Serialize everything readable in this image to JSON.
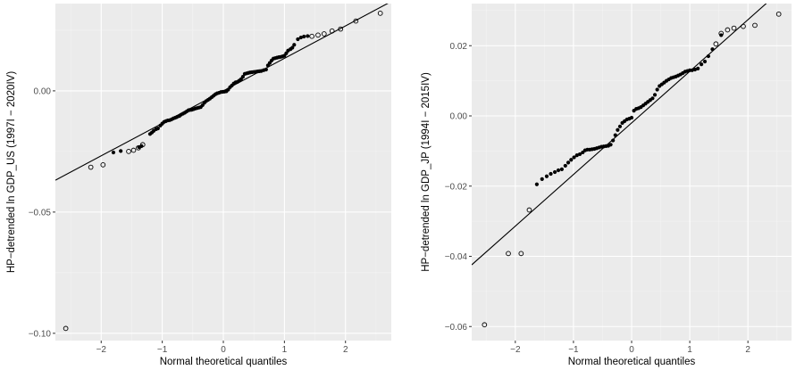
{
  "colors": {
    "panel": "#ebebeb",
    "grid_major": "#ffffff",
    "grid_minor": "#f4f4f4",
    "filled_point": "#000000",
    "open_point": "#000000",
    "reference_line": "#000000",
    "tick_label": "#4d4d4d"
  },
  "chart_data": [
    {
      "type": "scatter",
      "subtype": "qq-plot",
      "xlabel": "Normal theoretical quantiles",
      "ylabel": "HP−detrended ln GDP_US (1997I − 2020IV)",
      "xlim": [
        -2.75,
        2.75
      ],
      "ylim": [
        -0.103,
        0.036
      ],
      "x_ticks": [
        -2,
        -1,
        0,
        1,
        2
      ],
      "x_tick_labels": [
        "−2",
        "−1",
        "0",
        "1",
        "2"
      ],
      "y_ticks": [
        -0.1,
        -0.05,
        0.0
      ],
      "y_tick_labels": [
        "−0.10",
        "−0.05",
        "0.00"
      ],
      "reference_line": {
        "intercept": 0.0,
        "slope": 0.0134
      },
      "series": [
        {
          "marker": "open-circle",
          "points": [
            [
              -2.58,
              -0.098
            ],
            [
              -2.17,
              -0.0315
            ],
            [
              -1.97,
              -0.0305
            ],
            [
              -1.55,
              -0.025
            ],
            [
              -1.47,
              -0.0245
            ],
            [
              -1.39,
              -0.0235
            ],
            [
              -1.32,
              -0.0222
            ],
            [
              1.45,
              0.0225
            ],
            [
              1.55,
              0.023
            ],
            [
              1.65,
              0.0235
            ],
            [
              1.78,
              0.0247
            ],
            [
              1.92,
              0.0255
            ],
            [
              2.17,
              0.0288
            ],
            [
              2.57,
              0.032
            ]
          ]
        },
        {
          "marker": "filled-circle",
          "points": [
            [
              -1.8,
              -0.0254
            ],
            [
              -1.68,
              -0.0248
            ],
            [
              -1.38,
              -0.0232
            ],
            [
              -1.34,
              -0.0228
            ],
            [
              -1.2,
              -0.0178
            ],
            [
              -1.17,
              -0.0172
            ],
            [
              -1.14,
              -0.0165
            ],
            [
              -1.1,
              -0.0158
            ],
            [
              -1.07,
              -0.0155
            ],
            [
              -1.03,
              -0.0143
            ],
            [
              -1.0,
              -0.0135
            ],
            [
              -0.97,
              -0.0128
            ],
            [
              -0.94,
              -0.0125
            ],
            [
              -0.91,
              -0.0122
            ],
            [
              -0.88,
              -0.0121
            ],
            [
              -0.85,
              -0.0118
            ],
            [
              -0.82,
              -0.0114
            ],
            [
              -0.79,
              -0.0111
            ],
            [
              -0.76,
              -0.0108
            ],
            [
              -0.72,
              -0.0104
            ],
            [
              -0.69,
              -0.0098
            ],
            [
              -0.66,
              -0.0094
            ],
            [
              -0.63,
              -0.009
            ],
            [
              -0.6,
              -0.0085
            ],
            [
              -0.57,
              -0.008
            ],
            [
              -0.55,
              -0.0079
            ],
            [
              -0.52,
              -0.0078
            ],
            [
              -0.49,
              -0.0076
            ],
            [
              -0.46,
              -0.0073
            ],
            [
              -0.43,
              -0.0071
            ],
            [
              -0.4,
              -0.0069
            ],
            [
              -0.37,
              -0.0067
            ],
            [
              -0.34,
              -0.0059
            ],
            [
              -0.31,
              -0.0049
            ],
            [
              -0.28,
              -0.0042
            ],
            [
              -0.25,
              -0.0037
            ],
            [
              -0.22,
              -0.0032
            ],
            [
              -0.19,
              -0.0026
            ],
            [
              -0.16,
              -0.002
            ],
            [
              -0.13,
              -0.0014
            ],
            [
              -0.1,
              -0.001
            ],
            [
              -0.07,
              -0.0008
            ],
            [
              -0.04,
              -0.0005
            ],
            [
              -0.01,
              -0.0004
            ],
            [
              0.02,
              -0.0003
            ],
            [
              0.05,
              -0.0002
            ],
            [
              0.08,
              0.0005
            ],
            [
              0.11,
              0.0015
            ],
            [
              0.14,
              0.0022
            ],
            [
              0.17,
              0.003
            ],
            [
              0.2,
              0.0035
            ],
            [
              0.23,
              0.0037
            ],
            [
              0.26,
              0.0042
            ],
            [
              0.29,
              0.0048
            ],
            [
              0.32,
              0.0058
            ],
            [
              0.35,
              0.007
            ],
            [
              0.38,
              0.0072
            ],
            [
              0.41,
              0.0074
            ],
            [
              0.44,
              0.0076
            ],
            [
              0.47,
              0.0077
            ],
            [
              0.5,
              0.0078
            ],
            [
              0.53,
              0.0079
            ],
            [
              0.56,
              0.008
            ],
            [
              0.59,
              0.0081
            ],
            [
              0.62,
              0.0082
            ],
            [
              0.66,
              0.0085
            ],
            [
              0.7,
              0.0088
            ],
            [
              0.73,
              0.0105
            ],
            [
              0.76,
              0.0115
            ],
            [
              0.79,
              0.0125
            ],
            [
              0.82,
              0.0133
            ],
            [
              0.85,
              0.0135
            ],
            [
              0.88,
              0.0137
            ],
            [
              0.91,
              0.0139
            ],
            [
              0.94,
              0.014
            ],
            [
              0.97,
              0.0142
            ],
            [
              1.0,
              0.0145
            ],
            [
              1.03,
              0.0155
            ],
            [
              1.06,
              0.0166
            ],
            [
              1.1,
              0.0172
            ],
            [
              1.13,
              0.0178
            ],
            [
              1.16,
              0.019
            ],
            [
              1.22,
              0.0213
            ],
            [
              1.27,
              0.022
            ],
            [
              1.32,
              0.0224
            ],
            [
              1.38,
              0.0226
            ]
          ]
        }
      ]
    },
    {
      "type": "scatter",
      "subtype": "qq-plot",
      "xlabel": "Normal theoretical quantiles",
      "ylabel": "HP−detrended ln GDP_JP (1994I − 2015IV)",
      "xlim": [
        -2.75,
        2.75
      ],
      "ylim": [
        -0.064,
        0.032
      ],
      "x_ticks": [
        -2,
        -1,
        0,
        1,
        2
      ],
      "x_tick_labels": [
        "−2",
        "−1",
        "0",
        "1",
        "2"
      ],
      "y_ticks": [
        -0.06,
        -0.04,
        -0.02,
        0.0,
        0.02
      ],
      "y_tick_labels": [
        "−0.06",
        "−0.04",
        "−0.02",
        "0.00",
        "0.02"
      ],
      "reference_line": {
        "intercept": -0.002,
        "slope": 0.0147
      },
      "series": [
        {
          "marker": "open-circle",
          "points": [
            [
              -2.53,
              -0.0595
            ],
            [
              -2.12,
              -0.0392
            ],
            [
              -1.9,
              -0.0392
            ],
            [
              -1.76,
              -0.0268
            ],
            [
              1.45,
              0.0205
            ],
            [
              1.54,
              0.0235
            ],
            [
              1.65,
              0.0245
            ],
            [
              1.76,
              0.025
            ],
            [
              1.92,
              0.0255
            ],
            [
              2.12,
              0.0258
            ],
            [
              2.53,
              0.029
            ]
          ]
        },
        {
          "marker": "filled-circle",
          "points": [
            [
              -1.63,
              -0.0195
            ],
            [
              -1.54,
              -0.018
            ],
            [
              -1.46,
              -0.0172
            ],
            [
              -1.39,
              -0.0165
            ],
            [
              -1.32,
              -0.016
            ],
            [
              -1.26,
              -0.0155
            ],
            [
              -1.2,
              -0.0152
            ],
            [
              -1.14,
              -0.0142
            ],
            [
              -1.09,
              -0.0133
            ],
            [
              -1.04,
              -0.0125
            ],
            [
              -0.99,
              -0.0118
            ],
            [
              -0.94,
              -0.0112
            ],
            [
              -0.89,
              -0.0109
            ],
            [
              -0.84,
              -0.0104
            ],
            [
              -0.8,
              -0.0098
            ],
            [
              -0.76,
              -0.0096
            ],
            [
              -0.72,
              -0.0096
            ],
            [
              -0.68,
              -0.0095
            ],
            [
              -0.64,
              -0.0094
            ],
            [
              -0.6,
              -0.0092
            ],
            [
              -0.56,
              -0.009
            ],
            [
              -0.52,
              -0.0088
            ],
            [
              -0.48,
              -0.0087
            ],
            [
              -0.44,
              -0.0086
            ],
            [
              -0.4,
              -0.0085
            ],
            [
              -0.36,
              -0.0082
            ],
            [
              -0.32,
              -0.007
            ],
            [
              -0.28,
              -0.0055
            ],
            [
              -0.24,
              -0.004
            ],
            [
              -0.2,
              -0.003
            ],
            [
              -0.16,
              -0.002
            ],
            [
              -0.12,
              -0.0015
            ],
            [
              -0.08,
              -0.001
            ],
            [
              -0.04,
              -0.0008
            ],
            [
              0.0,
              -0.0005
            ],
            [
              0.04,
              0.0015
            ],
            [
              0.08,
              0.002
            ],
            [
              0.12,
              0.0022
            ],
            [
              0.16,
              0.0025
            ],
            [
              0.2,
              0.003
            ],
            [
              0.24,
              0.0035
            ],
            [
              0.28,
              0.004
            ],
            [
              0.32,
              0.0045
            ],
            [
              0.36,
              0.005
            ],
            [
              0.4,
              0.006
            ],
            [
              0.44,
              0.0075
            ],
            [
              0.48,
              0.0085
            ],
            [
              0.52,
              0.009
            ],
            [
              0.56,
              0.0095
            ],
            [
              0.6,
              0.01
            ],
            [
              0.64,
              0.0104
            ],
            [
              0.68,
              0.0108
            ],
            [
              0.72,
              0.011
            ],
            [
              0.76,
              0.0112
            ],
            [
              0.8,
              0.0115
            ],
            [
              0.84,
              0.0118
            ],
            [
              0.88,
              0.0122
            ],
            [
              0.92,
              0.0126
            ],
            [
              0.96,
              0.0128
            ],
            [
              1.0,
              0.013
            ],
            [
              1.04,
              0.013
            ],
            [
              1.09,
              0.0132
            ],
            [
              1.14,
              0.0135
            ],
            [
              1.2,
              0.0147
            ],
            [
              1.26,
              0.0155
            ],
            [
              1.32,
              0.017
            ],
            [
              1.39,
              0.019
            ],
            [
              1.54,
              0.023
            ]
          ]
        }
      ]
    }
  ]
}
